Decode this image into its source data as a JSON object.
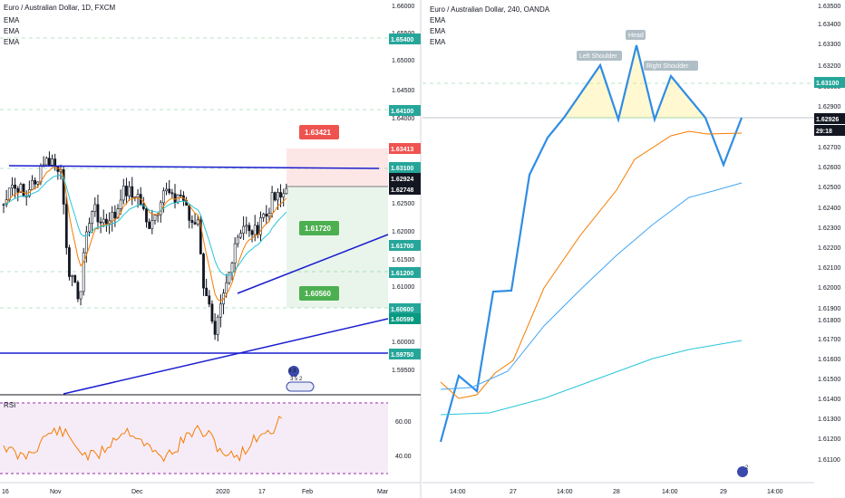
{
  "left": {
    "title": "Euro / Australian Dollar, 1D, FXCM",
    "indicators": [
      "EMA",
      "EMA",
      "EMA"
    ],
    "rsi_label": "RSI",
    "x_ticks": [
      "16",
      "Nov",
      "Dec",
      "2020",
      "17",
      "Feb",
      "Mar"
    ],
    "price_ticks": [
      "1.66000",
      "1.65500",
      "1.65000",
      "1.64500",
      "1.64000",
      "1.63500",
      "1.63000",
      "1.62500",
      "1.62000",
      "1.61500",
      "1.61000",
      "1.60500",
      "1.60000",
      "1.59500"
    ],
    "rsi_ticks": [
      "60.00",
      "40.00"
    ],
    "price_tags": [
      {
        "text": "1.65400",
        "color": "#26a69a"
      },
      {
        "text": "1.64100",
        "color": "#26a69a"
      },
      {
        "text": "1.63413",
        "color": "#ef5350"
      },
      {
        "text": "1.63100",
        "color": "#26a69a"
      },
      {
        "text": "1.62924",
        "color": "#131722"
      },
      {
        "text": "1.62748",
        "color": "#131722"
      },
      {
        "text": "1.61700",
        "color": "#26a69a"
      },
      {
        "text": "1.61200",
        "color": "#26a69a"
      },
      {
        "text": "1.60600",
        "color": "#26a69a"
      },
      {
        "text": "1.60599",
        "color": "#089981"
      },
      {
        "text": "1.59750",
        "color": "#26a69a"
      }
    ],
    "callouts": [
      {
        "text": "1.63421",
        "color": "#ef5350"
      },
      {
        "text": "1.61720",
        "color": "#4caf50"
      },
      {
        "text": "1.60560",
        "color": "#4caf50"
      }
    ],
    "badge_text": [
      "8 3",
      "3 5 2"
    ]
  },
  "right": {
    "title": "Euro / Australian Dollar, 240, OANDA",
    "indicators": [
      "EMA",
      "EMA",
      "EMA"
    ],
    "x_ticks": [
      "14:00",
      "27",
      "14:00",
      "28",
      "14:00",
      "29",
      "14:00"
    ],
    "price_ticks": [
      "1.63500",
      "1.63400",
      "1.63300",
      "1.63200",
      "1.63000",
      "1.62900",
      "1.62800",
      "1.62700",
      "1.62600",
      "1.62500",
      "1.62400",
      "1.62300",
      "1.62200",
      "1.62100",
      "1.62000",
      "1.61900",
      "1.61800",
      "1.61700",
      "1.61600",
      "1.61500",
      "1.61400",
      "1.61300",
      "1.61200",
      "1.61100"
    ],
    "price_tags": [
      {
        "text": "1.63100",
        "color": "#26a69a"
      },
      {
        "text": "1.62926",
        "color": "#131722"
      },
      {
        "text": "29:18",
        "color": "#131722"
      }
    ],
    "pattern_labels": [
      "Left Shoulder",
      "Head",
      "Right Shoulder"
    ],
    "badge_text": "2"
  },
  "chart_data": [
    {
      "type": "line",
      "title": "Euro / Australian Dollar, 1D, FXCM",
      "note": "candlestick price chart with EMAs and RSI",
      "ylim": [
        1.592,
        1.661
      ]
    },
    {
      "type": "line",
      "title": "Euro / Australian Dollar, 240, OANDA",
      "ylim": [
        1.611,
        1.636
      ]
    }
  ]
}
